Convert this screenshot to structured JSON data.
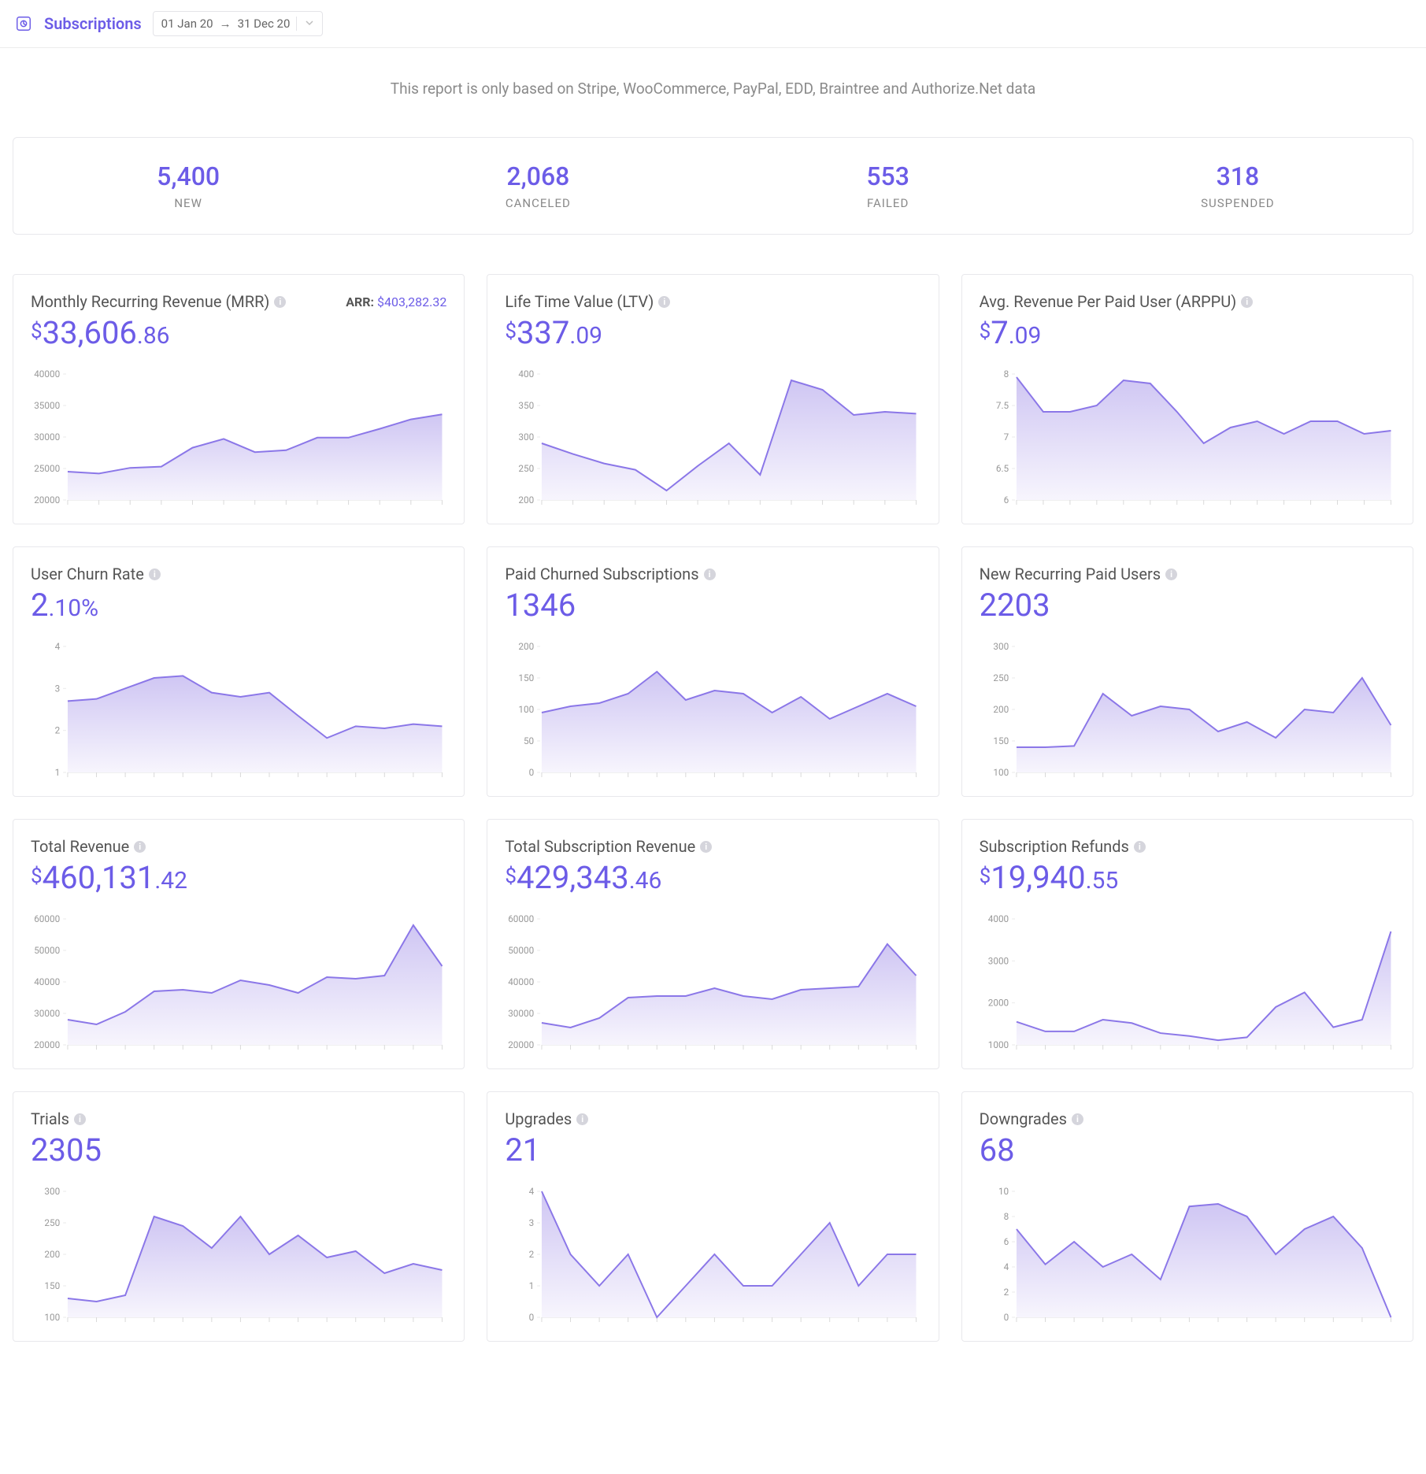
{
  "colors": {
    "accent": "#6c5ce7",
    "area_fill_top": "#cfc6f3",
    "area_fill_bottom": "#f7f5fd",
    "line": "#8b77e8",
    "grid": "#eaeaea",
    "tick_text": "#999999",
    "border": "#e8e8ec",
    "text_muted": "#8a8a8a"
  },
  "topbar": {
    "title": "Subscriptions",
    "date_start": "01 Jan 20",
    "date_sep": "→",
    "date_end": "31 Dec 20"
  },
  "note": "This report is only based on Stripe, WooCommerce, PayPal, EDD, Braintree and Authorize.Net data",
  "summary": [
    {
      "value": "5,400",
      "label": "NEW"
    },
    {
      "value": "2,068",
      "label": "CANCELED"
    },
    {
      "value": "553",
      "label": "FAILED"
    },
    {
      "value": "318",
      "label": "SUSPENDED"
    }
  ],
  "cards": [
    {
      "id": "mrr",
      "title": "Monthly Recurring Revenue (MRR)",
      "extra_label": "ARR:",
      "extra_value": "$403,282.32",
      "metric_currency": "$",
      "metric_main": "33,606",
      "metric_dec": ".86",
      "chart": {
        "ylim": [
          20000,
          40000
        ],
        "yticks": [
          20000,
          25000,
          30000,
          35000,
          40000
        ],
        "values": [
          24500,
          24200,
          25100,
          25300,
          28300,
          29700,
          27600,
          27900,
          29900,
          29900,
          31300,
          32800,
          33600
        ],
        "n_xticks": 13
      }
    },
    {
      "id": "ltv",
      "title": "Life Time Value (LTV)",
      "metric_currency": "$",
      "metric_main": "337",
      "metric_dec": ".09",
      "chart": {
        "ylim": [
          200,
          400
        ],
        "yticks": [
          200,
          250,
          300,
          350,
          400
        ],
        "values": [
          290,
          273,
          258,
          248,
          215,
          254,
          290,
          240,
          390,
          375,
          335,
          340,
          337
        ],
        "n_xticks": 13
      }
    },
    {
      "id": "arppu",
      "title": "Avg. Revenue Per Paid User (ARPPU)",
      "metric_currency": "$",
      "metric_main": "7",
      "metric_dec": ".09",
      "chart": {
        "ylim": [
          6,
          8
        ],
        "yticks": [
          6,
          6.5,
          7,
          7.5,
          8
        ],
        "values": [
          7.95,
          7.4,
          7.4,
          7.5,
          7.9,
          7.85,
          7.4,
          6.9,
          7.15,
          7.25,
          7.05,
          7.25,
          7.25,
          7.05,
          7.1
        ],
        "n_xticks": 15
      }
    },
    {
      "id": "churn",
      "title": "User Churn Rate",
      "metric_main": "2",
      "metric_dec": ".10%",
      "chart": {
        "ylim": [
          1,
          4
        ],
        "yticks": [
          1,
          2,
          3,
          4
        ],
        "values": [
          2.7,
          2.75,
          3.0,
          3.25,
          3.3,
          2.9,
          2.8,
          2.9,
          2.35,
          1.82,
          2.1,
          2.05,
          2.15,
          2.1
        ],
        "n_xticks": 14
      }
    },
    {
      "id": "paid_churned",
      "title": "Paid Churned Subscriptions",
      "metric_main": "1346",
      "chart": {
        "ylim": [
          0,
          200
        ],
        "yticks": [
          0,
          50,
          100,
          150,
          200
        ],
        "values": [
          95,
          105,
          110,
          125,
          160,
          115,
          130,
          125,
          95,
          120,
          85,
          105,
          125,
          105
        ],
        "n_xticks": 14
      }
    },
    {
      "id": "new_recurring",
      "title": "New Recurring Paid Users",
      "metric_main": "2203",
      "chart": {
        "ylim": [
          100,
          300
        ],
        "yticks": [
          100,
          150,
          200,
          250,
          300
        ],
        "values": [
          140,
          140,
          142,
          225,
          190,
          205,
          200,
          165,
          180,
          155,
          200,
          195,
          250,
          175
        ],
        "n_xticks": 14
      }
    },
    {
      "id": "total_rev",
      "title": "Total Revenue",
      "metric_currency": "$",
      "metric_main": "460,131",
      "metric_dec": ".42",
      "chart": {
        "ylim": [
          20000,
          60000
        ],
        "yticks": [
          20000,
          30000,
          40000,
          50000,
          60000
        ],
        "values": [
          28000,
          26500,
          30500,
          37000,
          37500,
          36500,
          40500,
          39000,
          36500,
          41500,
          41000,
          42000,
          58000,
          45000
        ],
        "n_xticks": 14
      }
    },
    {
      "id": "sub_rev",
      "title": "Total Subscription Revenue",
      "metric_currency": "$",
      "metric_main": "429,343",
      "metric_dec": ".46",
      "chart": {
        "ylim": [
          20000,
          60000
        ],
        "yticks": [
          20000,
          30000,
          40000,
          50000,
          60000
        ],
        "values": [
          27000,
          25500,
          28500,
          35000,
          35500,
          35500,
          38000,
          35500,
          34500,
          37500,
          38000,
          38500,
          52000,
          42000
        ],
        "n_xticks": 14
      }
    },
    {
      "id": "refunds",
      "title": "Subscription Refunds",
      "metric_currency": "$",
      "metric_main": "19,940",
      "metric_dec": ".55",
      "chart": {
        "ylim": [
          1000,
          4000
        ],
        "yticks": [
          1000,
          2000,
          3000,
          4000
        ],
        "values": [
          1550,
          1320,
          1320,
          1600,
          1520,
          1280,
          1210,
          1110,
          1180,
          1900,
          2250,
          1420,
          1600,
          3700
        ],
        "n_xticks": 14
      }
    },
    {
      "id": "trials",
      "title": "Trials",
      "metric_main": "2305",
      "chart": {
        "ylim": [
          100,
          300
        ],
        "yticks": [
          100,
          150,
          200,
          250,
          300
        ],
        "values": [
          130,
          125,
          135,
          260,
          245,
          210,
          260,
          200,
          230,
          195,
          205,
          170,
          185,
          175
        ],
        "n_xticks": 14
      }
    },
    {
      "id": "upgrades",
      "title": "Upgrades",
      "metric_main": "21",
      "chart": {
        "ylim": [
          0,
          4
        ],
        "yticks": [
          0,
          1,
          2,
          3,
          4
        ],
        "values": [
          4,
          2,
          1,
          2,
          0,
          1,
          2,
          1,
          1,
          2,
          3,
          1,
          2,
          2
        ],
        "n_xticks": 14
      }
    },
    {
      "id": "downgrades",
      "title": "Downgrades",
      "metric_main": "68",
      "chart": {
        "ylim": [
          0,
          10
        ],
        "yticks": [
          0,
          2,
          4,
          6,
          8,
          10
        ],
        "values": [
          7,
          4.2,
          6,
          4,
          5,
          3,
          8.8,
          9,
          8,
          5,
          7,
          8,
          5.5,
          0
        ],
        "n_xticks": 14
      }
    }
  ]
}
